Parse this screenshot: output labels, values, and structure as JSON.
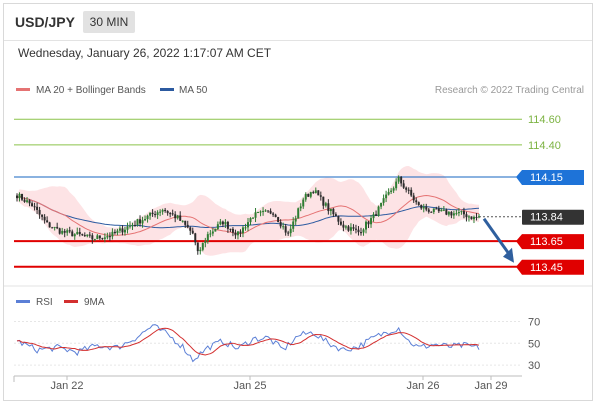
{
  "header": {
    "symbol": "USD/JPY",
    "timeframe": "30 MIN",
    "datetime": "Wednesday, January 26, 2022 1:17:07 AM CET"
  },
  "legend": {
    "bollinger": "MA 20 + Bollinger Bands",
    "ma50": "MA 50",
    "credit": "Research © 2022 Trading Central",
    "rsi": "RSI",
    "rsi_ma": "9MA"
  },
  "colors": {
    "up": "#2e7d32",
    "down": "#2b2b2b",
    "resistance": "#8bc34a",
    "pivot": "#1565c0",
    "support": "#e00000",
    "last": "#333333",
    "ma20": "#e57373",
    "ma50": "#2c5aa0",
    "band": "#fde2e4",
    "rsi": "#5b7fd6",
    "rsi_ma": "#d32f2f"
  },
  "chart_data": [
    {
      "type": "candlestick",
      "title": "",
      "ylim": [
        113.3,
        114.75
      ],
      "levels": [
        {
          "value": 114.6,
          "label": "114.60",
          "kind": "resistance"
        },
        {
          "value": 114.4,
          "label": "114.40",
          "kind": "resistance"
        },
        {
          "value": 114.15,
          "label": "114.15",
          "kind": "pivot"
        },
        {
          "value": 113.84,
          "label": "113.84",
          "kind": "last"
        },
        {
          "value": 113.65,
          "label": "113.65",
          "kind": "support"
        },
        {
          "value": 113.45,
          "label": "113.45",
          "kind": "support"
        }
      ],
      "x_tick_labels": [
        "Jan 22",
        "Jan 25",
        "Jan 26",
        "Jan 29"
      ],
      "expected_move": {
        "from": 113.84,
        "to": 113.45
      },
      "close_waypoints": [
        [
          0,
          114.01
        ],
        [
          6,
          113.93
        ],
        [
          12,
          113.78
        ],
        [
          18,
          113.72
        ],
        [
          24,
          113.7
        ],
        [
          30,
          113.67
        ],
        [
          38,
          113.7
        ],
        [
          44,
          113.76
        ],
        [
          52,
          113.84
        ],
        [
          58,
          113.9
        ],
        [
          64,
          113.83
        ],
        [
          70,
          113.71
        ],
        [
          72,
          113.55
        ],
        [
          76,
          113.7
        ],
        [
          82,
          113.8
        ],
        [
          88,
          113.7
        ],
        [
          94,
          113.85
        ],
        [
          102,
          113.88
        ],
        [
          108,
          113.7
        ],
        [
          114,
          113.98
        ],
        [
          118,
          114.05
        ],
        [
          124,
          113.9
        ],
        [
          130,
          113.77
        ],
        [
          136,
          113.72
        ],
        [
          142,
          113.84
        ],
        [
          148,
          114.02
        ],
        [
          152,
          114.13
        ],
        [
          156,
          114.03
        ],
        [
          160,
          113.92
        ],
        [
          166,
          113.88
        ],
        [
          172,
          113.87
        ],
        [
          178,
          113.86
        ],
        [
          182,
          113.83
        ],
        [
          184,
          113.84
        ]
      ]
    },
    {
      "type": "line",
      "title": "",
      "ylim": [
        20,
        75
      ],
      "y_ticks": [
        70,
        50,
        30
      ],
      "rsi_waypoints": [
        [
          0,
          52
        ],
        [
          8,
          44
        ],
        [
          16,
          46
        ],
        [
          24,
          42
        ],
        [
          32,
          48
        ],
        [
          40,
          46
        ],
        [
          48,
          56
        ],
        [
          54,
          66
        ],
        [
          60,
          58
        ],
        [
          66,
          47
        ],
        [
          70,
          35
        ],
        [
          76,
          46
        ],
        [
          82,
          52
        ],
        [
          88,
          45
        ],
        [
          94,
          54
        ],
        [
          100,
          55
        ],
        [
          106,
          44
        ],
        [
          112,
          57
        ],
        [
          118,
          60
        ],
        [
          124,
          50
        ],
        [
          130,
          44
        ],
        [
          136,
          47
        ],
        [
          142,
          55
        ],
        [
          148,
          61
        ],
        [
          152,
          64
        ],
        [
          156,
          52
        ],
        [
          160,
          46
        ],
        [
          166,
          49
        ],
        [
          172,
          47
        ],
        [
          178,
          48
        ],
        [
          184,
          46
        ]
      ]
    }
  ]
}
